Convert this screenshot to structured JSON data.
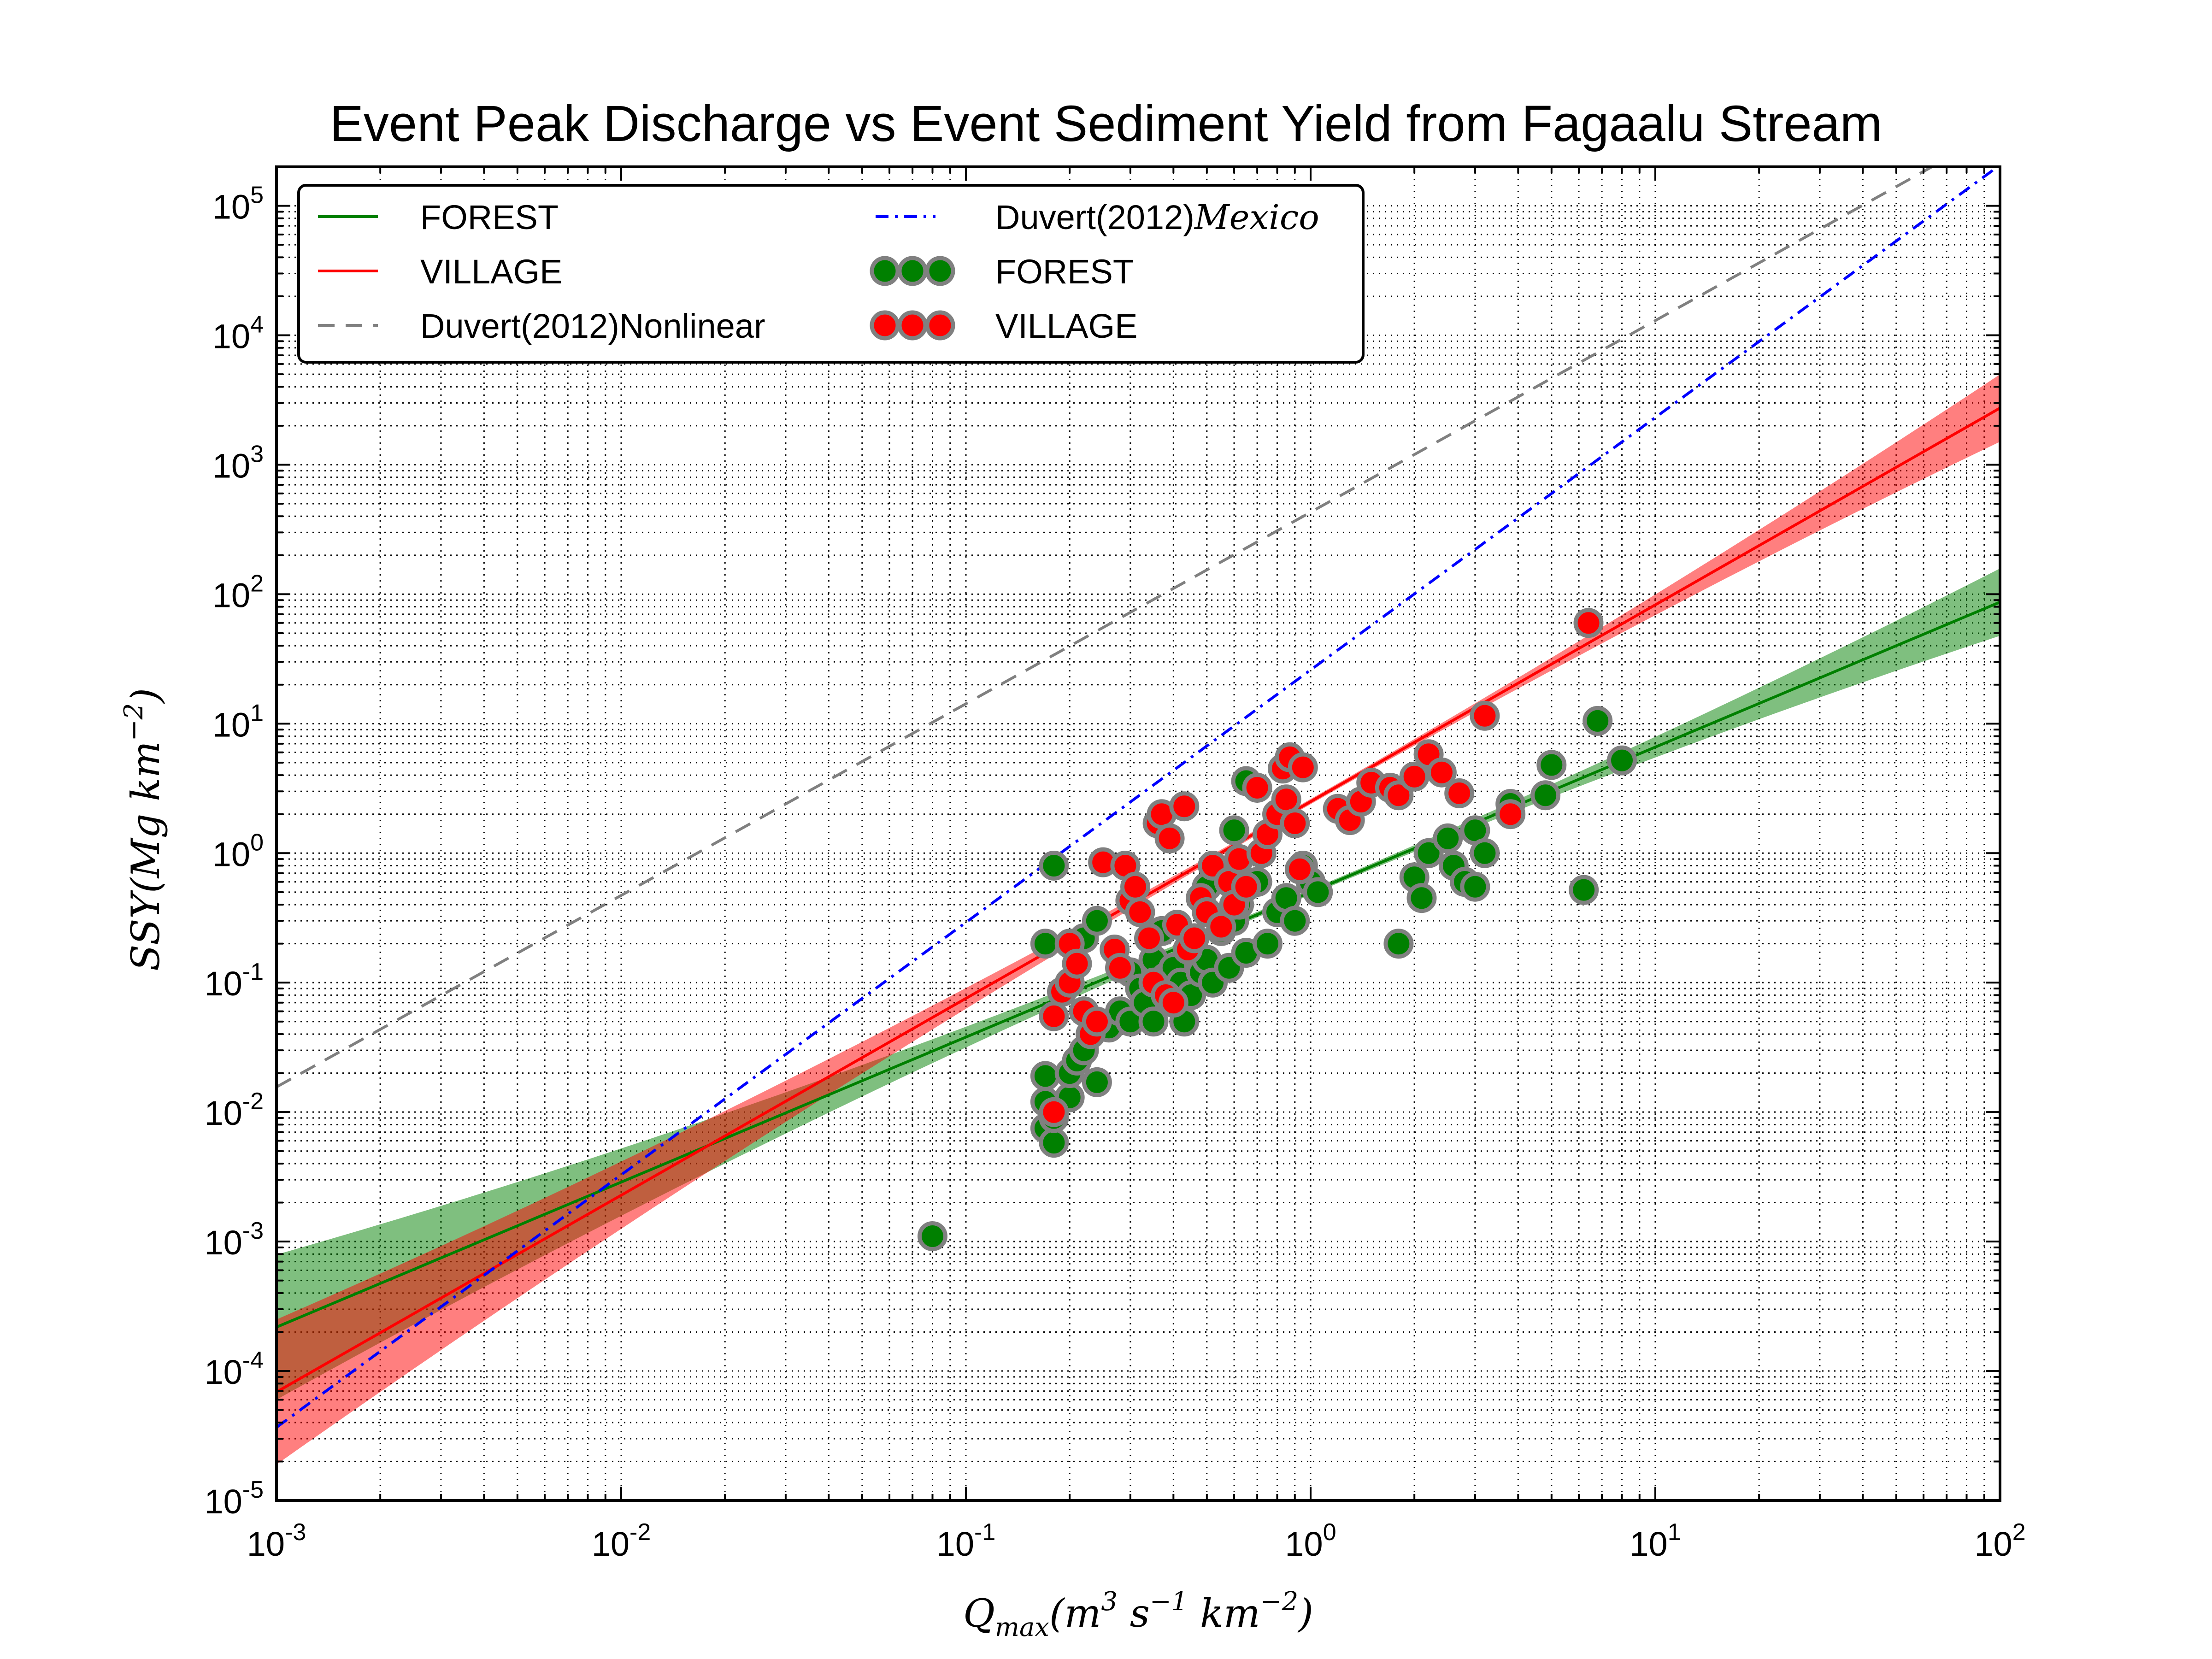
{
  "chart_data": {
    "type": "scatter",
    "title": "Event Peak Discharge vs Event Sediment Yield from Fagaalu Stream",
    "xlabel": {
      "base": "Q",
      "sub": "max",
      "body": "(m",
      "sup1": "3",
      "mid1": " s",
      "sup2": "−1",
      "mid2": " km",
      "sup3": "−2",
      "end": ")"
    },
    "ylabel": {
      "body": "SSY(Mg km",
      "sup": "−2",
      "end": ")"
    },
    "x_scale": "log",
    "y_scale": "log",
    "xlim": [
      0.001,
      100
    ],
    "ylim": [
      1e-05,
      200000
    ],
    "grid": true,
    "legend_position": "top-left",
    "x_ticks": [
      {
        "value": 0.001,
        "base": "10",
        "exp": "-3"
      },
      {
        "value": 0.01,
        "base": "10",
        "exp": "-2"
      },
      {
        "value": 0.1,
        "base": "10",
        "exp": "-1"
      },
      {
        "value": 1,
        "base": "10",
        "exp": "0"
      },
      {
        "value": 10,
        "base": "10",
        "exp": "1"
      },
      {
        "value": 100,
        "base": "10",
        "exp": "2"
      }
    ],
    "y_ticks": [
      {
        "value": 1e-05,
        "base": "10",
        "exp": "-5"
      },
      {
        "value": 0.0001,
        "base": "10",
        "exp": "-4"
      },
      {
        "value": 0.001,
        "base": "10",
        "exp": "-3"
      },
      {
        "value": 0.01,
        "base": "10",
        "exp": "-2"
      },
      {
        "value": 0.1,
        "base": "10",
        "exp": "-1"
      },
      {
        "value": 1,
        "base": "10",
        "exp": "0"
      },
      {
        "value": 10,
        "base": "10",
        "exp": "1"
      },
      {
        "value": 100,
        "base": "10",
        "exp": "2"
      },
      {
        "value": 1000,
        "base": "10",
        "exp": "3"
      },
      {
        "value": 10000,
        "base": "10",
        "exp": "4"
      },
      {
        "value": 100000,
        "base": "10",
        "exp": "5"
      }
    ],
    "fit_lines": [
      {
        "name": "FOREST",
        "color": "#008000",
        "band_color": "#008000",
        "a": 0.5,
        "b": 1.12,
        "band_lo": 0.62,
        "band_hi": 1.55,
        "style": "solid"
      },
      {
        "name": "VILLAGE",
        "color": "#ff0000",
        "band_color": "#ff0000",
        "a": 2.5,
        "b": 1.52,
        "band_lo": 0.62,
        "band_hi": 1.6,
        "style": "solid"
      },
      {
        "name": "Duvert(2012)Nonlinear",
        "color": "#808080",
        "a": 430,
        "b": 1.48,
        "style": "dashed"
      },
      {
        "name": "Duvert(2012)",
        "name_suffix": "Mexico",
        "color": "#0000ff",
        "a": 26,
        "b": 1.95,
        "style": "dashdot"
      }
    ],
    "series": [
      {
        "name": "FOREST",
        "color": "#008000",
        "points": [
          [
            0.08,
            0.0011
          ],
          [
            0.17,
            0.0075
          ],
          [
            0.17,
            0.012
          ],
          [
            0.17,
            0.019
          ],
          [
            0.17,
            0.2
          ],
          [
            0.18,
            0.0058
          ],
          [
            0.18,
            0.009
          ],
          [
            0.18,
            0.8
          ],
          [
            0.2,
            0.013
          ],
          [
            0.2,
            0.02
          ],
          [
            0.21,
            0.025
          ],
          [
            0.22,
            0.03
          ],
          [
            0.22,
            0.22
          ],
          [
            0.24,
            0.017
          ],
          [
            0.24,
            0.3
          ],
          [
            0.26,
            0.045
          ],
          [
            0.28,
            0.06
          ],
          [
            0.3,
            0.05
          ],
          [
            0.3,
            0.12
          ],
          [
            0.32,
            0.09
          ],
          [
            0.33,
            0.07
          ],
          [
            0.35,
            0.05
          ],
          [
            0.35,
            0.15
          ],
          [
            0.37,
            0.25
          ],
          [
            0.38,
            0.11
          ],
          [
            0.4,
            0.07
          ],
          [
            0.4,
            0.13
          ],
          [
            0.42,
            0.1
          ],
          [
            0.43,
            0.05
          ],
          [
            0.45,
            0.08
          ],
          [
            0.45,
            0.2
          ],
          [
            0.48,
            0.12
          ],
          [
            0.5,
            0.15
          ],
          [
            0.5,
            0.55
          ],
          [
            0.52,
            0.1
          ],
          [
            0.55,
            0.25
          ],
          [
            0.58,
            0.13
          ],
          [
            0.6,
            0.3
          ],
          [
            0.6,
            1.5
          ],
          [
            0.62,
            0.4
          ],
          [
            0.65,
            0.17
          ],
          [
            0.65,
            3.6
          ],
          [
            0.7,
            0.6
          ],
          [
            0.75,
            0.2
          ],
          [
            0.8,
            0.35
          ],
          [
            0.85,
            0.45
          ],
          [
            0.9,
            0.3
          ],
          [
            0.95,
            0.8
          ],
          [
            1.0,
            0.6
          ],
          [
            1.05,
            0.5
          ],
          [
            1.8,
            0.2
          ],
          [
            2.0,
            0.65
          ],
          [
            2.1,
            0.45
          ],
          [
            2.2,
            1.0
          ],
          [
            2.5,
            1.3
          ],
          [
            2.6,
            0.8
          ],
          [
            2.8,
            0.6
          ],
          [
            3.0,
            0.55
          ],
          [
            3.0,
            1.5
          ],
          [
            3.2,
            1.0
          ],
          [
            3.8,
            2.4
          ],
          [
            4.8,
            2.8
          ],
          [
            5.0,
            4.8
          ],
          [
            6.2,
            0.52
          ],
          [
            6.8,
            10.5
          ],
          [
            8.0,
            5.2
          ]
        ]
      },
      {
        "name": "VILLAGE",
        "color": "#ff0000",
        "points": [
          [
            0.18,
            0.01
          ],
          [
            0.18,
            0.055
          ],
          [
            0.19,
            0.085
          ],
          [
            0.2,
            0.1
          ],
          [
            0.2,
            0.2
          ],
          [
            0.21,
            0.14
          ],
          [
            0.22,
            0.06
          ],
          [
            0.23,
            0.04
          ],
          [
            0.24,
            0.05
          ],
          [
            0.25,
            0.85
          ],
          [
            0.27,
            0.18
          ],
          [
            0.28,
            0.13
          ],
          [
            0.29,
            0.8
          ],
          [
            0.3,
            0.43
          ],
          [
            0.31,
            0.55
          ],
          [
            0.32,
            0.35
          ],
          [
            0.34,
            0.22
          ],
          [
            0.35,
            0.1
          ],
          [
            0.36,
            1.7
          ],
          [
            0.37,
            2.0
          ],
          [
            0.38,
            0.08
          ],
          [
            0.39,
            1.3
          ],
          [
            0.4,
            0.07
          ],
          [
            0.41,
            0.28
          ],
          [
            0.43,
            2.3
          ],
          [
            0.44,
            0.18
          ],
          [
            0.46,
            0.22
          ],
          [
            0.48,
            0.45
          ],
          [
            0.5,
            0.35
          ],
          [
            0.52,
            0.8
          ],
          [
            0.55,
            0.27
          ],
          [
            0.58,
            0.6
          ],
          [
            0.6,
            0.4
          ],
          [
            0.62,
            0.9
          ],
          [
            0.65,
            0.55
          ],
          [
            0.7,
            3.2
          ],
          [
            0.72,
            1.0
          ],
          [
            0.75,
            1.4
          ],
          [
            0.8,
            2.0
          ],
          [
            0.83,
            4.5
          ],
          [
            0.85,
            2.6
          ],
          [
            0.87,
            5.5
          ],
          [
            0.9,
            1.7
          ],
          [
            0.93,
            0.75
          ],
          [
            0.95,
            4.6
          ],
          [
            1.2,
            2.2
          ],
          [
            1.3,
            1.8
          ],
          [
            1.4,
            2.5
          ],
          [
            1.5,
            3.5
          ],
          [
            1.7,
            3.2
          ],
          [
            1.8,
            2.8
          ],
          [
            2.0,
            3.9
          ],
          [
            2.2,
            5.8
          ],
          [
            2.4,
            4.2
          ],
          [
            2.7,
            2.9
          ],
          [
            3.2,
            11.5
          ],
          [
            3.8,
            2.0
          ],
          [
            6.4,
            60.0
          ]
        ]
      }
    ],
    "legend": {
      "entries": [
        {
          "label": "FOREST",
          "kind": "line",
          "color": "#008000",
          "style": "solid"
        },
        {
          "label": "VILLAGE",
          "kind": "line",
          "color": "#ff0000",
          "style": "solid"
        },
        {
          "label": "Duvert(2012)Nonlinear",
          "kind": "line",
          "color": "#808080",
          "style": "dashed"
        },
        {
          "label": "Duvert(2012)",
          "label_italic": "Mexico",
          "kind": "line",
          "color": "#0000ff",
          "style": "dashdot"
        },
        {
          "label": "FOREST",
          "kind": "marker",
          "color": "#008000"
        },
        {
          "label": "VILLAGE",
          "kind": "marker",
          "color": "#ff0000"
        }
      ]
    }
  }
}
